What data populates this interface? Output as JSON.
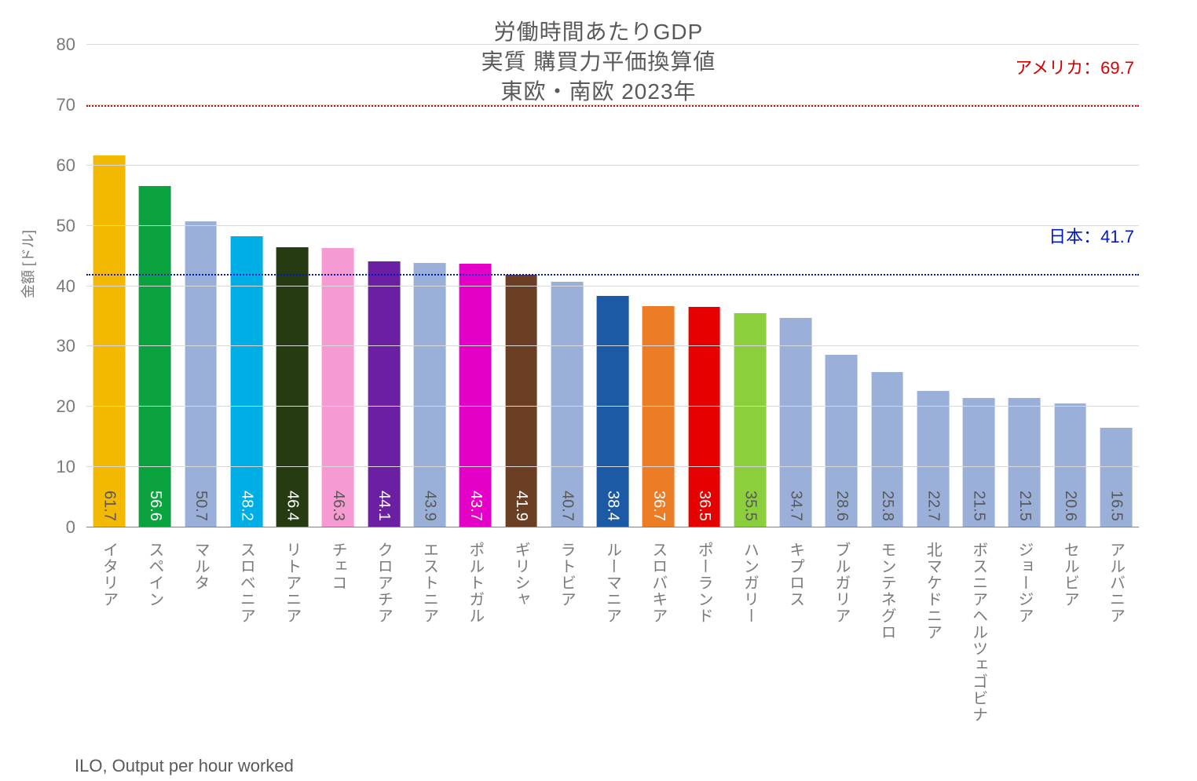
{
  "chart": {
    "type": "bar",
    "title_lines": [
      "労働時間あたりGDP",
      "実質 購買力平価換算値",
      "東欧・南欧 2023年"
    ],
    "title_fontsize": 28,
    "title_color": "#595959",
    "background_color": "#ffffff",
    "grid_color": "#d9d9d9",
    "baseline_color": "#808080",
    "yaxis": {
      "title": "金額 [ドル]",
      "title_fontsize": 18,
      "min": 0,
      "max": 80,
      "tick_step": 10,
      "tick_fontsize": 22,
      "tick_color": "#7a7a7a"
    },
    "reference_lines": [
      {
        "value": 69.7,
        "label": "アメリカ：69.7",
        "color": "#d40000"
      },
      {
        "value": 41.7,
        "label": "日本：41.7",
        "color": "#0018c4"
      }
    ],
    "reference_label_fontsize": 22,
    "default_bar_color": "#9bb0d9",
    "bar_width_ratio": 0.7,
    "value_label_fontsize": 20,
    "value_label_color_light": "#ffffff",
    "value_label_color_dark": "#595959",
    "xaxis_label_fontsize": 20,
    "xaxis_label_color": "#7a7a7a",
    "categories": [
      {
        "name": "イタリア",
        "value": 61.7,
        "color": "#f2b900",
        "value_color": "dark"
      },
      {
        "name": "スペイン",
        "value": 56.6,
        "color": "#0aa33f",
        "value_color": "light"
      },
      {
        "name": "マルタ",
        "value": 50.7,
        "color": "#9bb0d9",
        "value_color": "dark"
      },
      {
        "name": "スロベニア",
        "value": 48.2,
        "color": "#00aee6",
        "value_color": "light"
      },
      {
        "name": "リトアニア",
        "value": 46.4,
        "color": "#263b12",
        "value_color": "light"
      },
      {
        "name": "チェコ",
        "value": 46.3,
        "color": "#f59ad3",
        "value_color": "dark"
      },
      {
        "name": "クロアチア",
        "value": 44.1,
        "color": "#6b1fa3",
        "value_color": "light"
      },
      {
        "name": "エストニア",
        "value": 43.9,
        "color": "#9bb0d9",
        "value_color": "dark"
      },
      {
        "name": "ポルトガル",
        "value": 43.7,
        "color": "#e500c8",
        "value_color": "light"
      },
      {
        "name": "ギリシャ",
        "value": 41.9,
        "color": "#6b3f24",
        "value_color": "light"
      },
      {
        "name": "ラトビア",
        "value": 40.7,
        "color": "#9bb0d9",
        "value_color": "dark"
      },
      {
        "name": "ルーマニア",
        "value": 38.4,
        "color": "#1d5aa6",
        "value_color": "light"
      },
      {
        "name": "スロバキア",
        "value": 36.7,
        "color": "#ec7c26",
        "value_color": "light"
      },
      {
        "name": "ポーランド",
        "value": 36.5,
        "color": "#e60000",
        "value_color": "light"
      },
      {
        "name": "ハンガリー",
        "value": 35.5,
        "color": "#8bcf3c",
        "value_color": "dark"
      },
      {
        "name": "キプロス",
        "value": 34.7,
        "color": "#9bb0d9",
        "value_color": "dark"
      },
      {
        "name": "ブルガリア",
        "value": 28.6,
        "color": "#9bb0d9",
        "value_color": "dark"
      },
      {
        "name": "モンテネグロ",
        "value": 25.8,
        "color": "#9bb0d9",
        "value_color": "dark"
      },
      {
        "name": "北マケドニア",
        "value": 22.7,
        "color": "#9bb0d9",
        "value_color": "dark"
      },
      {
        "name": "ボスニアヘルツェゴビナ",
        "value": 21.5,
        "color": "#9bb0d9",
        "value_color": "dark"
      },
      {
        "name": "ジョージア",
        "value": 21.5,
        "color": "#9bb0d9",
        "value_color": "dark"
      },
      {
        "name": "セルビア",
        "value": 20.6,
        "color": "#9bb0d9",
        "value_color": "dark"
      },
      {
        "name": "アルバニア",
        "value": 16.5,
        "color": "#9bb0d9",
        "value_color": "dark"
      }
    ],
    "source": "ILO, Output per hour worked",
    "source_fontsize": 22
  }
}
